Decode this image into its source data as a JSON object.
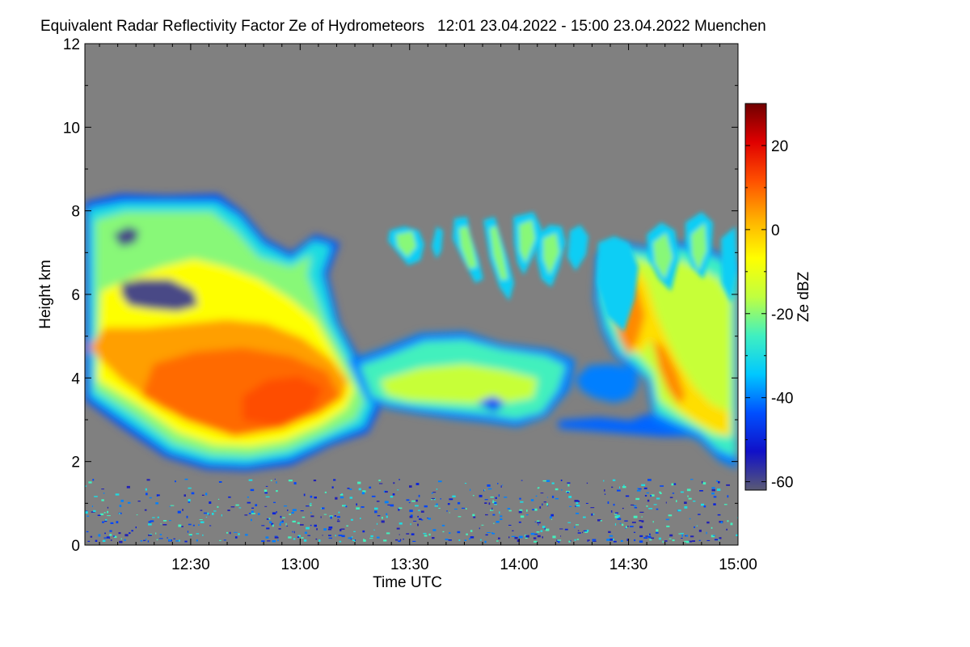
{
  "chart_data": {
    "type": "heatmap",
    "title": "Equivalent Radar Reflectivity Factor Ze of Hydrometeors   12:01 23.04.2022 - 15:00 23.04.2022 Muenchen",
    "xlabel": "Time UTC",
    "ylabel": "Height km",
    "xlim": [
      "12:01",
      "15:00"
    ],
    "ylim": [
      0,
      12
    ],
    "x_ticks": [
      "12:30",
      "13:00",
      "13:30",
      "14:00",
      "14:30",
      "15:00"
    ],
    "y_ticks": [
      0,
      2,
      4,
      6,
      8,
      10,
      12
    ],
    "colorbar": {
      "label": "Ze dBZ",
      "range": [
        -62,
        30
      ],
      "ticks": [
        -60,
        -40,
        -20,
        0,
        20
      ],
      "colormap": [
        "#5a5a74",
        "#1010c8",
        "#0050ff",
        "#00c8ff",
        "#40f0c0",
        "#c0ff40",
        "#ffff00",
        "#ffb000",
        "#ff5000",
        "#e00000",
        "#700000"
      ]
    },
    "no_data_color": "#808080",
    "regions": [
      {
        "name": "main-stratiform-layer",
        "time": [
          "12:01",
          "13:23"
        ],
        "height_km": [
          1.8,
          8.4
        ],
        "ze_dbz": [
          -45,
          12
        ],
        "core_time": [
          "12:25",
          "13:07"
        ],
        "core_height_km": [
          2.7,
          4.6
        ],
        "core_ze_dbz": [
          5,
          12
        ]
      },
      {
        "name": "trailing-layer",
        "time": [
          "13:23",
          "14:10"
        ],
        "height_km": [
          2.7,
          5.0
        ],
        "ze_dbz": [
          -45,
          -5
        ]
      },
      {
        "name": "upper-fall-streaks",
        "time": [
          "13:25",
          "14:15"
        ],
        "height_km": [
          5.5,
          7.9
        ],
        "ze_dbz": [
          -35,
          -15
        ]
      },
      {
        "name": "late-cells",
        "time": [
          "14:22",
          "15:00"
        ],
        "height_km": [
          2.2,
          7.8
        ],
        "ze_dbz": [
          -45,
          10
        ],
        "core_ze_dbz": [
          0,
          10
        ]
      },
      {
        "name": "low-level-clutter",
        "time": [
          "12:01",
          "15:00"
        ],
        "height_km": [
          0.1,
          1.6
        ],
        "ze_dbz": [
          -55,
          -25
        ]
      }
    ]
  }
}
